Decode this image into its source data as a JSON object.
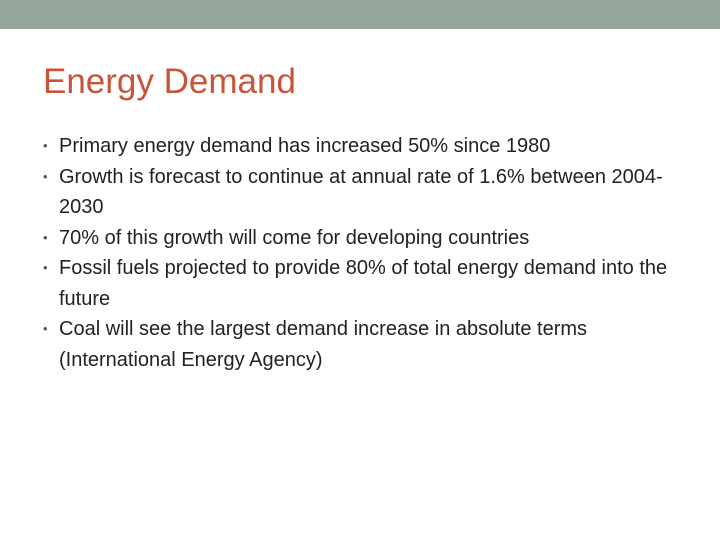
{
  "theme": {
    "band_color": "#95a59c",
    "title_color": "#c8553a"
  },
  "slide": {
    "title": "Energy Demand",
    "bullet_marker": "•",
    "bullets": [
      "Primary energy demand has increased 50% since 1980",
      "Growth is forecast to continue at annual rate of 1.6% between 2004-2030",
      "70% of this growth will come for developing countries",
      "Fossil fuels projected to provide 80% of total energy demand into the future",
      "Coal will see the largest demand increase in absolute terms (International Energy Agency)"
    ]
  }
}
